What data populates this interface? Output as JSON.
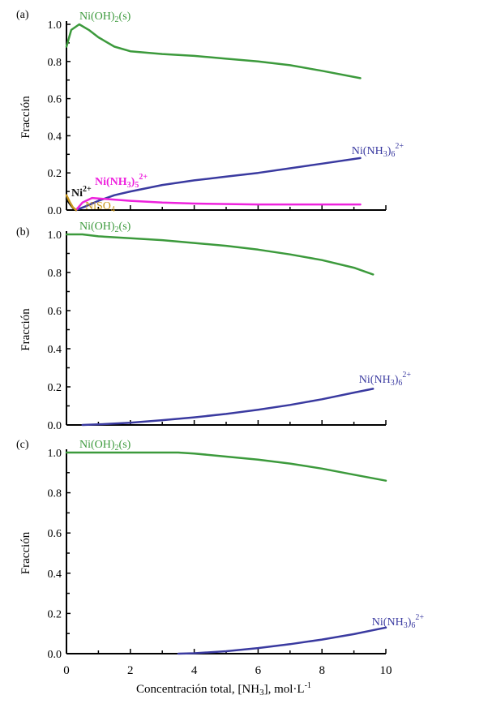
{
  "chart_data": [
    {
      "type": "line",
      "panel_label": "(a)",
      "ylabel": "Fracción",
      "xlim": [
        0,
        10
      ],
      "ylim": [
        0,
        1
      ],
      "yticks": [
        "0.0",
        "0.2",
        "0.4",
        "0.6",
        "0.8",
        "1.0"
      ],
      "series": [
        {
          "name": "Ni(OH)2(s)",
          "label_main": "Ni(OH)",
          "label_sub": "2",
          "label_tail": "(s)",
          "color": "#3c9a3c",
          "x": [
            0,
            0.15,
            0.4,
            0.7,
            1,
            1.5,
            2,
            3,
            4,
            5,
            6,
            7,
            8,
            9.2
          ],
          "y": [
            0.88,
            0.97,
            1.0,
            0.97,
            0.93,
            0.88,
            0.855,
            0.84,
            0.83,
            0.815,
            0.8,
            0.78,
            0.75,
            0.71
          ]
        },
        {
          "name": "Ni(NH3)6 2+",
          "label_main": "Ni(NH",
          "label_sub": "3",
          "label_tail": ")",
          "label_sub2": "6",
          "label_sup": "2+",
          "color": "#3a3aa0",
          "x": [
            0.3,
            0.6,
            1,
            1.5,
            2,
            3,
            4,
            5,
            6,
            7,
            8,
            9.2
          ],
          "y": [
            0,
            0.02,
            0.05,
            0.08,
            0.1,
            0.135,
            0.16,
            0.18,
            0.2,
            0.225,
            0.25,
            0.28
          ]
        },
        {
          "name": "Ni(NH3)5 2+",
          "label_main": "Ni(NH",
          "label_sub": "3",
          "label_tail": ")",
          "label_sub2": "5",
          "label_sup": "2+",
          "color": "#ee22dd",
          "x": [
            0.3,
            0.5,
            0.8,
            1.2,
            2,
            3,
            4,
            6,
            8,
            9.2
          ],
          "y": [
            0,
            0.04,
            0.065,
            0.06,
            0.05,
            0.04,
            0.035,
            0.03,
            0.03,
            0.03
          ]
        },
        {
          "name": "Ni2+",
          "label_main": "Ni",
          "label_sup": "2+",
          "color": "#111111",
          "x": [
            0,
            0.1,
            0.2,
            0.3
          ],
          "y": [
            0.06,
            0.035,
            0.012,
            0
          ]
        },
        {
          "name": "NiSO4",
          "label_main": "NiSO",
          "label_sub": "4",
          "color": "#c8961e",
          "x": [
            0,
            0.1,
            0.2,
            0.3
          ],
          "y": [
            0.08,
            0.045,
            0.015,
            0
          ]
        }
      ]
    },
    {
      "type": "line",
      "panel_label": "(b)",
      "ylabel": "Fracción",
      "xlim": [
        0,
        10
      ],
      "ylim": [
        0,
        1
      ],
      "yticks": [
        "0.0",
        "0.2",
        "0.4",
        "0.6",
        "0.8",
        "1.0"
      ],
      "series": [
        {
          "name": "Ni(OH)2(s)",
          "label_main": "Ni(OH)",
          "label_sub": "2",
          "label_tail": "(s)",
          "color": "#3c9a3c",
          "x": [
            0,
            0.5,
            1,
            2,
            3,
            4,
            5,
            6,
            7,
            8,
            9,
            9.6
          ],
          "y": [
            1.0,
            1.0,
            0.99,
            0.98,
            0.97,
            0.955,
            0.94,
            0.92,
            0.895,
            0.865,
            0.825,
            0.79
          ]
        },
        {
          "name": "Ni(NH3)6 2+",
          "label_main": "Ni(NH",
          "label_sub": "3",
          "label_tail": ")",
          "label_sub2": "6",
          "label_sup": "2+",
          "color": "#3a3aa0",
          "x": [
            0.5,
            1,
            2,
            3,
            4,
            5,
            6,
            7,
            8,
            9,
            9.6
          ],
          "y": [
            0,
            0.003,
            0.012,
            0.025,
            0.04,
            0.058,
            0.08,
            0.105,
            0.135,
            0.17,
            0.19
          ]
        }
      ]
    },
    {
      "type": "line",
      "panel_label": "(c)",
      "ylabel": "Fracción",
      "xlabel_main": "Concentración total, [NH",
      "xlabel_sub": "3",
      "xlabel_tail": "], mol·L",
      "xlabel_sup": "-1",
      "xticks": [
        "0",
        "2",
        "4",
        "6",
        "8",
        "10"
      ],
      "xlim": [
        0,
        10
      ],
      "ylim": [
        0,
        1
      ],
      "yticks": [
        "0.0",
        "0.2",
        "0.4",
        "0.6",
        "0.8",
        "1.0"
      ],
      "series": [
        {
          "name": "Ni(OH)2(s)",
          "label_main": "Ni(OH)",
          "label_sub": "2",
          "label_tail": "(s)",
          "color": "#3c9a3c",
          "x": [
            0,
            1,
            2,
            3,
            3.5,
            4,
            5,
            6,
            7,
            8,
            9,
            10
          ],
          "y": [
            1.0,
            1.0,
            1.0,
            1.0,
            1.0,
            0.995,
            0.98,
            0.965,
            0.945,
            0.92,
            0.89,
            0.86
          ]
        },
        {
          "name": "Ni(NH3)6 2+",
          "label_main": "Ni(NH",
          "label_sub": "3",
          "label_tail": ")",
          "label_sub2": "6",
          "label_sup": "2+",
          "color": "#3a3aa0",
          "x": [
            3.5,
            4,
            5,
            6,
            7,
            8,
            9,
            10
          ],
          "y": [
            0,
            0.002,
            0.012,
            0.028,
            0.047,
            0.07,
            0.097,
            0.13
          ]
        }
      ]
    }
  ]
}
